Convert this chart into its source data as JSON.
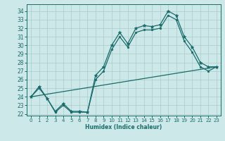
{
  "xlabel": "Humidex (Indice chaleur)",
  "bg_color": "#cce8e8",
  "line_color": "#1a6b6b",
  "grid_color": "#aacccc",
  "xlim": [
    -0.5,
    23.5
  ],
  "ylim": [
    21.8,
    34.8
  ],
  "yticks": [
    22,
    23,
    24,
    25,
    26,
    27,
    28,
    29,
    30,
    31,
    32,
    33,
    34
  ],
  "xticks": [
    0,
    1,
    2,
    3,
    4,
    5,
    6,
    7,
    8,
    9,
    10,
    11,
    12,
    13,
    14,
    15,
    16,
    17,
    18,
    19,
    20,
    21,
    22,
    23
  ],
  "series": [
    {
      "x": [
        0,
        1,
        2,
        3,
        4,
        5,
        6,
        7,
        8,
        9,
        10,
        11,
        12,
        13,
        14,
        15,
        16,
        17,
        18,
        19,
        20,
        21,
        22,
        23
      ],
      "y": [
        24.0,
        25.2,
        23.8,
        22.3,
        23.2,
        22.3,
        22.3,
        22.2,
        26.5,
        27.5,
        30.0,
        31.5,
        30.2,
        32.0,
        32.3,
        32.2,
        32.4,
        34.0,
        33.5,
        31.0,
        29.8,
        28.0,
        27.5,
        27.5
      ],
      "marker": "*",
      "markersize": 3.5,
      "linewidth": 0.9
    },
    {
      "x": [
        0,
        1,
        2,
        3,
        4,
        5,
        6,
        7,
        8,
        9,
        10,
        11,
        12,
        13,
        14,
        15,
        16,
        17,
        18,
        19,
        20,
        21,
        22,
        23
      ],
      "y": [
        24.0,
        25.0,
        23.8,
        22.2,
        23.0,
        22.2,
        22.2,
        22.2,
        26.0,
        27.0,
        29.5,
        31.0,
        29.8,
        31.5,
        31.8,
        31.8,
        32.0,
        33.5,
        33.0,
        30.5,
        29.2,
        27.5,
        27.0,
        27.5
      ],
      "marker": "o",
      "markersize": 1.8,
      "linewidth": 0.9
    },
    {
      "x": [
        0,
        23
      ],
      "y": [
        24.0,
        27.5
      ],
      "marker": null,
      "markersize": 0,
      "linewidth": 0.9
    }
  ]
}
